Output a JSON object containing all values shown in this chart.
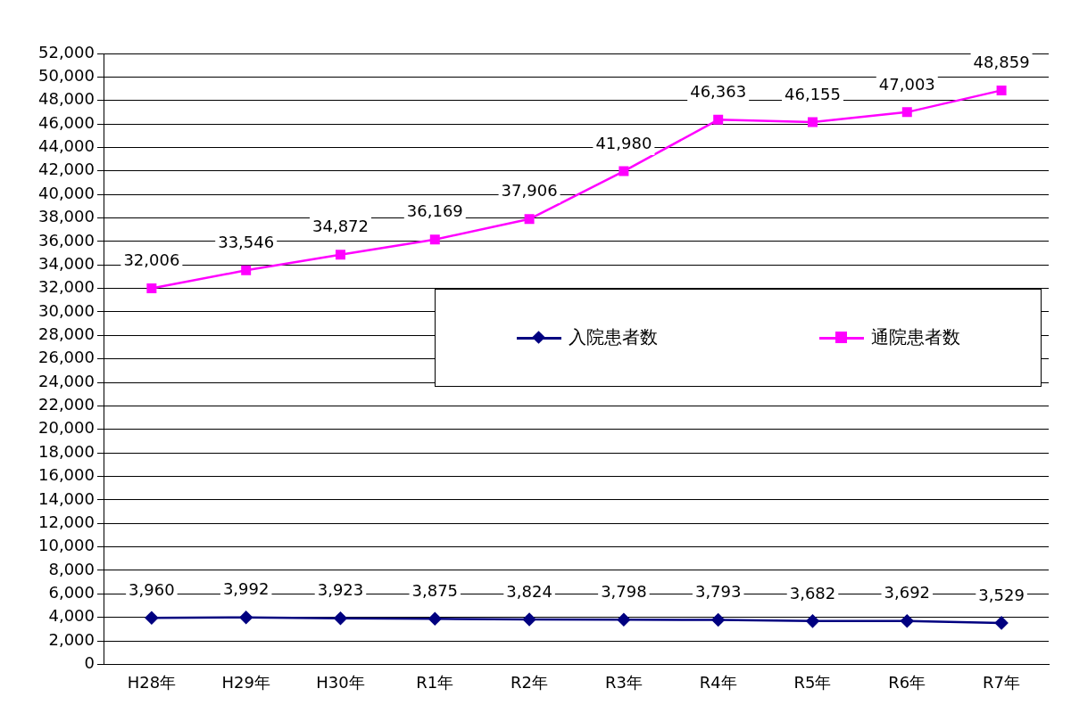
{
  "chart_data": {
    "type": "line",
    "categories": [
      "H28年",
      "H29年",
      "H30年",
      "R1年",
      "R2年",
      "R3年",
      "R4年",
      "R5年",
      "R6年",
      "R7年"
    ],
    "series": [
      {
        "name": "入院患者数",
        "color": "#000080",
        "marker": "diamond",
        "values": [
          3960,
          3992,
          3923,
          3875,
          3824,
          3798,
          3793,
          3682,
          3692,
          3529
        ],
        "value_labels": [
          "3,960",
          "3,992",
          "3,923",
          "3,875",
          "3,824",
          "3,798",
          "3,793",
          "3,682",
          "3,692",
          "3,529"
        ]
      },
      {
        "name": "通院患者数",
        "color": "#ff00ff",
        "marker": "square",
        "values": [
          32006,
          33546,
          34872,
          36169,
          37906,
          41980,
          46363,
          46155,
          47003,
          48859
        ],
        "value_labels": [
          "32,006",
          "33,546",
          "34,872",
          "36,169",
          "37,906",
          "41,980",
          "46,363",
          "46,155",
          "47,003",
          "48,859"
        ]
      }
    ],
    "ylim": [
      0,
      52000
    ],
    "yticks": [
      0,
      {
        "value": 2000,
        "label": "2,000"
      },
      {
        "value": 4000,
        "label": "4,000"
      },
      {
        "value": 6000,
        "label": "6,000"
      },
      {
        "value": 8000,
        "label": "8,000"
      },
      {
        "value": 10000,
        "label": "10,000"
      },
      {
        "value": 12000,
        "label": "12,000"
      },
      {
        "value": 14000,
        "label": "14,000"
      },
      {
        "value": 16000,
        "label": "16,000"
      },
      {
        "value": 18000,
        "label": "18,000"
      },
      {
        "value": 20000,
        "label": "20,000"
      },
      {
        "value": 22000,
        "label": "22,000"
      },
      {
        "value": 24000,
        "label": "24,000"
      },
      {
        "value": 26000,
        "label": "26,000"
      },
      {
        "value": 28000,
        "label": "28,000"
      },
      {
        "value": 30000,
        "label": "30,000"
      },
      {
        "value": 32000,
        "label": "32,000"
      },
      {
        "value": 34000,
        "label": "34,000"
      },
      {
        "value": 36000,
        "label": "36,000"
      },
      {
        "value": 38000,
        "label": "38,000"
      },
      {
        "value": 40000,
        "label": "40,000"
      },
      {
        "value": 42000,
        "label": "42,000"
      },
      {
        "value": 44000,
        "label": "44,000"
      },
      {
        "value": 46000,
        "label": "46,000"
      },
      {
        "value": 48000,
        "label": "48,000"
      },
      {
        "value": 50000,
        "label": "50,000"
      },
      {
        "value": 52000,
        "label": "52,000"
      }
    ],
    "grid": "y",
    "legend": "center right"
  }
}
